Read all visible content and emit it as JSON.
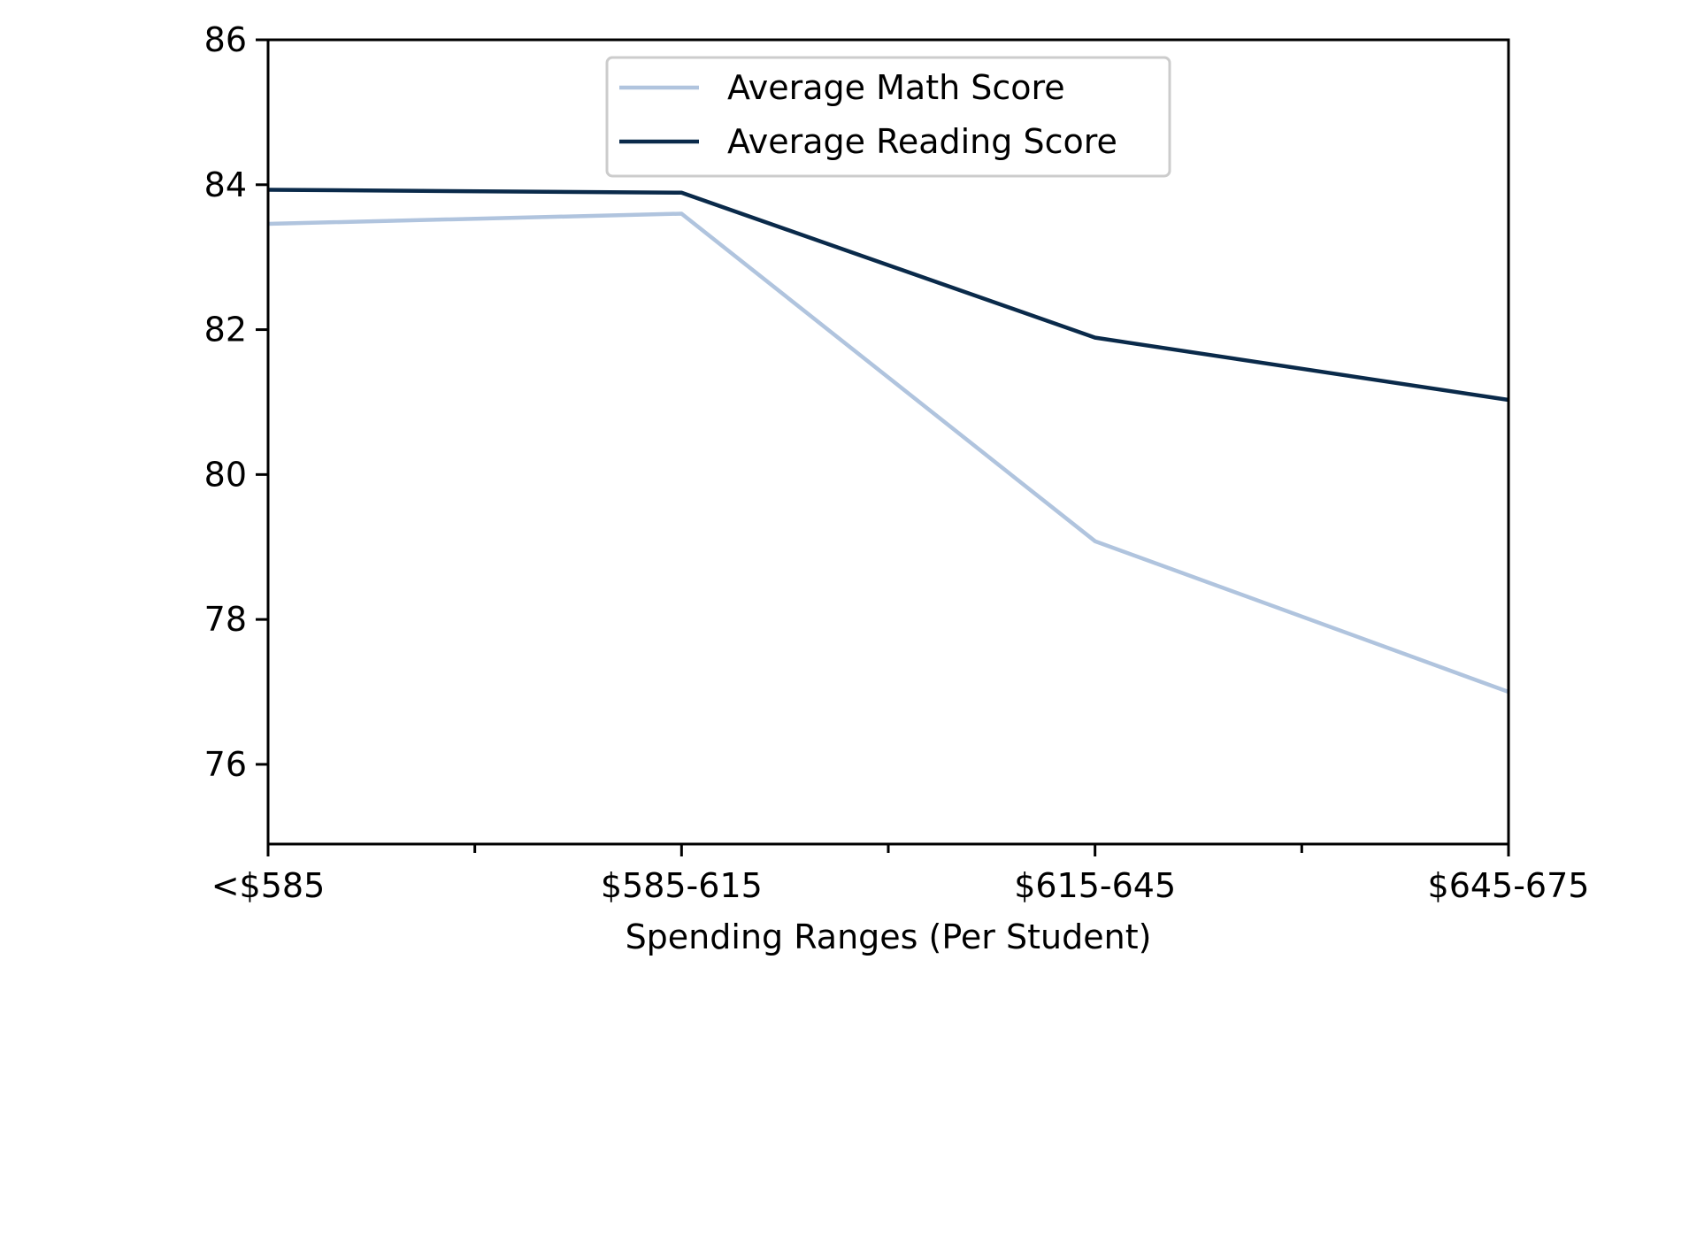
{
  "chart_data": {
    "type": "line",
    "categories": [
      "<$585",
      "$585-615",
      "$615-645",
      "$645-675"
    ],
    "series": [
      {
        "name": "Average Math Score",
        "values": [
          83.46,
          83.6,
          79.08,
          77.0
        ],
        "color": "#b0c4de"
      },
      {
        "name": "Average Reading Score",
        "values": [
          83.93,
          83.89,
          81.89,
          81.03
        ],
        "color": "#0a2a4a"
      }
    ],
    "xlabel": "Spending Ranges (Per Student)",
    "ylabel": "",
    "ylim": [
      74.9,
      86.0
    ],
    "yticks": [
      76,
      78,
      80,
      82,
      84,
      86
    ],
    "legend": "top-center",
    "grid": false
  }
}
